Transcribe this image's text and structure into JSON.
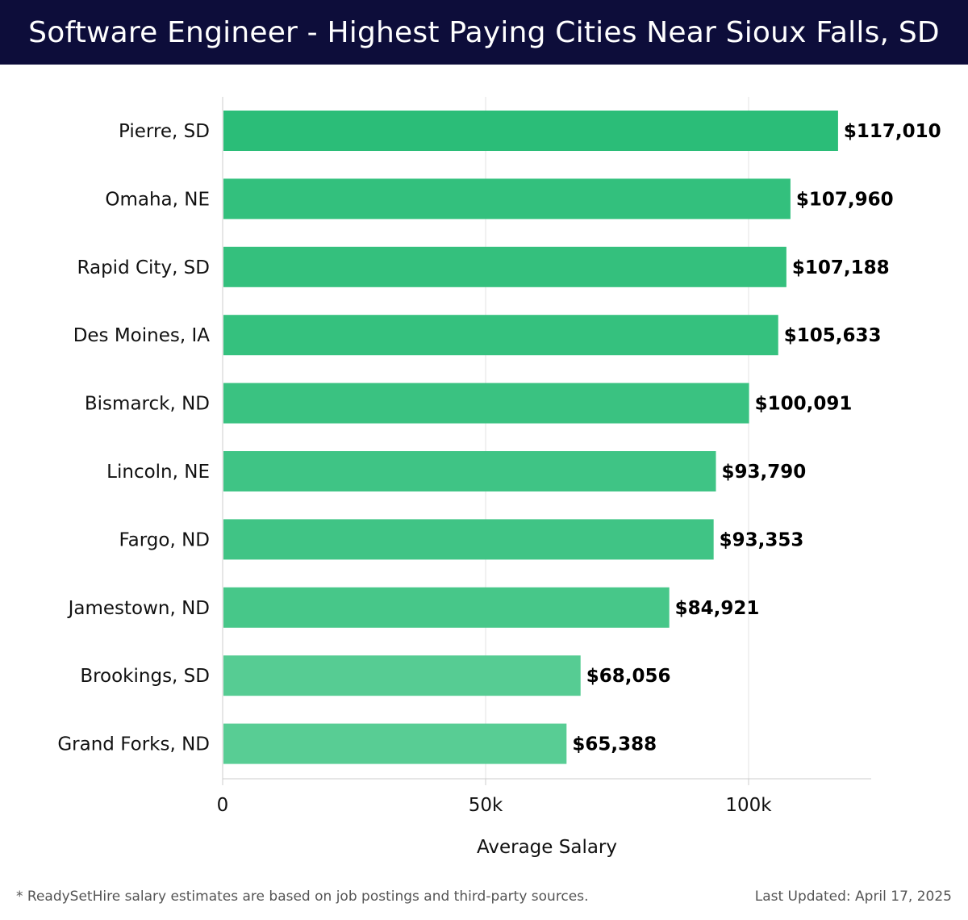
{
  "header": {
    "title": "Software Engineer - Highest Paying Cities Near Sioux Falls, SD"
  },
  "chart_data": {
    "type": "bar",
    "orientation": "horizontal",
    "title": "Software Engineer - Highest Paying Cities Near Sioux Falls, SD",
    "xlabel": "Average Salary",
    "ylabel": "",
    "xlim": [
      0,
      123000
    ],
    "grid": true,
    "categories": [
      "Pierre, SD",
      "Omaha, NE",
      "Rapid City, SD",
      "Des Moines, IA",
      "Bismarck, ND",
      "Lincoln, NE",
      "Fargo, ND",
      "Jamestown, ND",
      "Brookings, SD",
      "Grand Forks, ND"
    ],
    "values": [
      117010,
      107960,
      107188,
      105633,
      100091,
      93790,
      93353,
      84921,
      68056,
      65388
    ],
    "value_labels": [
      "$117,010",
      "$107,960",
      "$107,188",
      "$105,633",
      "$100,091",
      "$93,790",
      "$93,353",
      "$84,921",
      "$68,056",
      "$65,388"
    ],
    "ticks": [
      0,
      50000,
      100000
    ],
    "tick_labels": [
      "0",
      "50k",
      "100k"
    ],
    "colors": {
      "high": "#2bbd78",
      "low": "#58cd94",
      "grid": "#e3e3e3",
      "axis": "#cccccc"
    }
  },
  "footer": {
    "note": "* ReadySetHire salary estimates are based on job postings and third-party sources.",
    "updated": "Last Updated: April 17, 2025"
  }
}
